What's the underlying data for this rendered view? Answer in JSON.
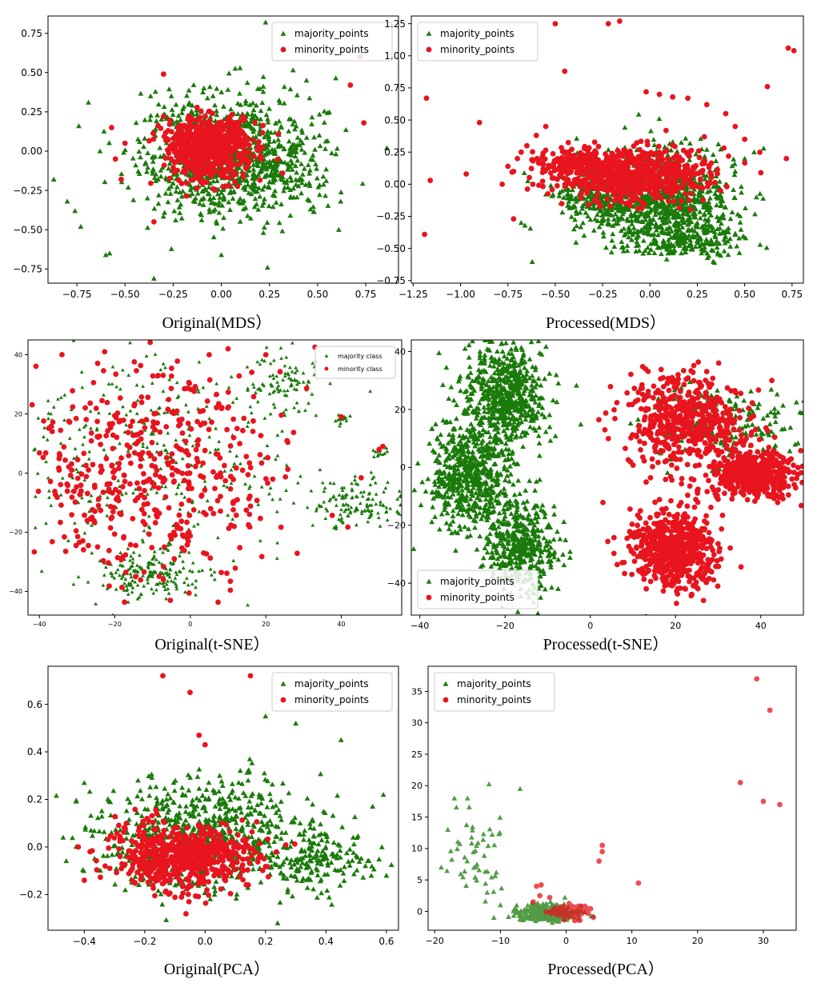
{
  "colors": {
    "majority": "#1a7a0a",
    "minority": "#e8141e",
    "frame": "#000000"
  },
  "chart_data": [
    {
      "type": "scatter",
      "caption": "Original(MDS）",
      "xlim": [
        -0.9,
        0.92
      ],
      "ylim": [
        -0.84,
        0.86
      ],
      "xticks": [
        -0.75,
        -0.5,
        -0.25,
        0.0,
        0.25,
        0.5,
        0.75
      ],
      "xtick_labels": [
        "−0.75",
        "−0.50",
        "−0.25",
        "0.00",
        "0.25",
        "0.50",
        "0.75"
      ],
      "yticks": [
        -0.75,
        -0.5,
        -0.25,
        0.0,
        0.25,
        0.5,
        0.75
      ],
      "ytick_labels": [
        "−0.75",
        "−0.50",
        "−0.25",
        "0.00",
        "0.25",
        "0.50",
        "0.75"
      ],
      "legend": [
        "majority_points",
        "minority_points"
      ],
      "legend_position": "top-right",
      "series": [
        {
          "name": "majority_points",
          "marker": "triangle",
          "clusters": [
            {
              "cx": 0.0,
              "cy": -0.02,
              "sx": 0.22,
              "sy": 0.2,
              "n": 800
            },
            {
              "cx": 0.3,
              "cy": -0.12,
              "sx": 0.18,
              "sy": 0.13,
              "n": 150
            }
          ],
          "points": [
            [
              0.23,
              0.82
            ],
            [
              -0.87,
              -0.18
            ],
            [
              -0.8,
              -0.32
            ],
            [
              -0.76,
              -0.38
            ],
            [
              -0.73,
              -0.48
            ],
            [
              -0.58,
              -0.65
            ],
            [
              -0.6,
              -0.66
            ],
            [
              -0.35,
              -0.81
            ],
            [
              0.62,
              0.62
            ],
            [
              0.86,
              0.02
            ],
            [
              0.62,
              -0.32
            ],
            [
              0.61,
              -0.5
            ],
            [
              -0.69,
              0.31
            ],
            [
              -0.74,
              0.16
            ],
            [
              -0.63,
              0.0
            ],
            [
              0.24,
              -0.74
            ],
            [
              0.0,
              -0.66
            ]
          ]
        },
        {
          "name": "minority_points",
          "marker": "circle",
          "clusters": [
            {
              "cx": -0.06,
              "cy": 0.02,
              "sx": 0.12,
              "sy": 0.1,
              "n": 600
            }
          ],
          "points": [
            [
              0.72,
              0.6
            ],
            [
              0.67,
              0.42
            ],
            [
              0.74,
              0.18
            ],
            [
              -0.35,
              -0.45
            ],
            [
              -0.57,
              0.15
            ],
            [
              -0.55,
              -0.05
            ],
            [
              -0.52,
              -0.18
            ],
            [
              -0.5,
              0.05
            ],
            [
              -0.3,
              0.49
            ]
          ]
        }
      ]
    },
    {
      "type": "scatter",
      "caption": "Processed(MDS）",
      "xlim": [
        -1.26,
        0.81
      ],
      "ylim": [
        -0.77,
        1.31
      ],
      "xticks": [
        -1.25,
        -1.0,
        -0.75,
        -0.5,
        -0.25,
        0.0,
        0.25,
        0.5,
        0.75
      ],
      "xtick_labels": [
        "−1.25",
        "−1.00",
        "−0.75",
        "−0.50",
        "−0.25",
        "0.00",
        "0.25",
        "0.50",
        "0.75"
      ],
      "yticks": [
        -0.75,
        -0.5,
        -0.25,
        0.0,
        0.25,
        0.5,
        0.75,
        1.0,
        1.25
      ],
      "ytick_labels": [
        "−0.75",
        "−0.50",
        "−0.25",
        "0.00",
        "0.25",
        "0.50",
        "0.75",
        "1.00",
        "1.25"
      ],
      "legend": [
        "majority_points",
        "minority_points"
      ],
      "legend_position": "top-left",
      "series": [
        {
          "name": "majority_points",
          "marker": "triangle",
          "clusters": [
            {
              "cx": 0.03,
              "cy": -0.12,
              "sx": 0.2,
              "sy": 0.18,
              "n": 900
            },
            {
              "cx": 0.2,
              "cy": -0.42,
              "sx": 0.15,
              "sy": 0.08,
              "n": 200
            },
            {
              "cx": -0.3,
              "cy": -0.08,
              "sx": 0.12,
              "sy": 0.08,
              "n": 150
            }
          ],
          "points": [
            [
              0.5,
              0.2
            ],
            [
              0.55,
              0.25
            ],
            [
              0.6,
              0.28
            ],
            [
              0.45,
              0.1
            ],
            [
              0.4,
              0.0
            ],
            [
              0.35,
              -0.1
            ],
            [
              0.3,
              -0.2
            ],
            [
              0.25,
              -0.3
            ],
            [
              -0.68,
              -0.3
            ],
            [
              -0.66,
              -0.32
            ]
          ]
        },
        {
          "name": "minority_points",
          "marker": "circle",
          "clusters": [
            {
              "cx": -0.1,
              "cy": 0.08,
              "sx": 0.2,
              "sy": 0.1,
              "n": 700
            },
            {
              "cx": -0.42,
              "cy": 0.17,
              "sx": 0.1,
              "sy": 0.05,
              "n": 120
            }
          ],
          "points": [
            [
              -0.5,
              1.25
            ],
            [
              -0.22,
              1.25
            ],
            [
              -0.16,
              1.27
            ],
            [
              0.73,
              1.06
            ],
            [
              0.76,
              1.04
            ],
            [
              -1.18,
              0.67
            ],
            [
              -0.45,
              0.88
            ],
            [
              -0.9,
              0.48
            ],
            [
              -0.97,
              0.08
            ],
            [
              -1.16,
              0.03
            ],
            [
              -1.19,
              -0.39
            ],
            [
              -0.72,
              -0.27
            ],
            [
              -0.78,
              0.0
            ],
            [
              0.62,
              0.76
            ],
            [
              0.72,
              0.2
            ],
            [
              -0.75,
              0.14
            ],
            [
              -0.7,
              0.2
            ],
            [
              -0.65,
              0.3
            ],
            [
              -0.6,
              0.38
            ],
            [
              -0.55,
              0.45
            ],
            [
              -0.02,
              0.72
            ],
            [
              0.05,
              0.7
            ],
            [
              0.12,
              0.68
            ],
            [
              0.2,
              0.67
            ],
            [
              0.3,
              0.62
            ],
            [
              0.4,
              0.55
            ],
            [
              0.45,
              0.45
            ],
            [
              0.5,
              0.35
            ],
            [
              -0.72,
              0.1
            ],
            [
              -0.68,
              0.25
            ]
          ]
        }
      ]
    },
    {
      "type": "scatter",
      "caption": "Original(t-SNE）",
      "xlim": [
        -43,
        56
      ],
      "ylim": [
        -48,
        45
      ],
      "xticks": [
        -40,
        -20,
        0,
        20,
        40
      ],
      "xtick_labels": [
        "−40",
        "−20",
        "0",
        "20",
        "40"
      ],
      "yticks": [
        -40,
        -20,
        0,
        20,
        40
      ],
      "ytick_labels": [
        "−40",
        "−20",
        "0",
        "20",
        "40"
      ],
      "legend": [
        "majority class",
        "minority class"
      ],
      "legend_position": "top-right",
      "series": [
        {
          "name": "majority class",
          "marker": "triangle",
          "small": true,
          "clusters": [
            {
              "cx": -10,
              "cy": -34,
              "sx": 7,
              "sy": 4,
              "n": 160
            },
            {
              "cx": 44,
              "cy": -10,
              "sx": 6,
              "sy": 4,
              "n": 140
            },
            {
              "cx": 25,
              "cy": 30,
              "sx": 5,
              "sy": 6,
              "n": 90
            },
            {
              "cx": -10,
              "cy": 5,
              "sx": 20,
              "sy": 20,
              "n": 350
            },
            {
              "cx": 40,
              "cy": 18,
              "sx": 1,
              "sy": 1,
              "n": 12
            },
            {
              "cx": 50,
              "cy": 7,
              "sx": 1,
              "sy": 1,
              "n": 10
            }
          ],
          "points": []
        },
        {
          "name": "minority class",
          "marker": "circle",
          "clusters": [
            {
              "cx": -10,
              "cy": 0,
              "sx": 18,
              "sy": 18,
              "n": 480
            }
          ],
          "points": [
            [
              10,
              42
            ],
            [
              5,
              40
            ],
            [
              20,
              40
            ],
            [
              40,
              19
            ],
            [
              50,
              8
            ],
            [
              51,
              9
            ]
          ]
        }
      ]
    },
    {
      "type": "scatter",
      "caption": "Processed(t-SNE）",
      "xlim": [
        -42,
        50
      ],
      "ylim": [
        -51,
        44
      ],
      "xticks": [
        -40,
        -20,
        0,
        20,
        40
      ],
      "xtick_labels": [
        "−40",
        "−20",
        "0",
        "20",
        "40"
      ],
      "yticks": [
        -40,
        -20,
        0,
        20,
        40
      ],
      "ytick_labels": [
        "−40",
        "−20",
        "0",
        "20",
        "40"
      ],
      "legend": [
        "majority_points",
        "minority_points"
      ],
      "legend_position": "bottom-left",
      "series": [
        {
          "name": "majority_points",
          "marker": "triangle",
          "clusters": [
            {
              "cx": -20,
              "cy": 25,
              "sx": 5,
              "sy": 9,
              "n": 600
            },
            {
              "cx": -28,
              "cy": -3,
              "sx": 5,
              "sy": 10,
              "n": 600
            },
            {
              "cx": -16,
              "cy": -28,
              "sx": 4,
              "sy": 8,
              "n": 400
            },
            {
              "cx": 30,
              "cy": 15,
              "sx": 9,
              "sy": 7,
              "n": 200
            }
          ],
          "points": []
        },
        {
          "name": "minority_points",
          "marker": "circle",
          "clusters": [
            {
              "cx": 22,
              "cy": 16,
              "sx": 7,
              "sy": 8,
              "n": 500
            },
            {
              "cx": 38,
              "cy": -2,
              "sx": 5,
              "sy": 4,
              "n": 500
            },
            {
              "cx": 20,
              "cy": -28,
              "sx": 5,
              "sy": 7,
              "n": 600
            }
          ],
          "points": []
        }
      ]
    },
    {
      "type": "scatter",
      "caption": "Original(PCA）",
      "xlim": [
        -0.52,
        0.64
      ],
      "ylim": [
        -0.35,
        0.76
      ],
      "xticks": [
        -0.4,
        -0.2,
        0.0,
        0.2,
        0.4,
        0.6
      ],
      "xtick_labels": [
        "−0.4",
        "−0.2",
        "0.0",
        "0.2",
        "0.4",
        "0.6"
      ],
      "yticks": [
        -0.2,
        0.0,
        0.2,
        0.4,
        0.6
      ],
      "ytick_labels": [
        "−0.2",
        "0.0",
        "0.2",
        "0.4",
        "0.6"
      ],
      "legend": [
        "majority_points",
        "minority_points"
      ],
      "legend_position": "top-right",
      "series": [
        {
          "name": "majority_points",
          "marker": "triangle",
          "clusters": [
            {
              "cx": 0.0,
              "cy": 0.05,
              "sx": 0.18,
              "sy": 0.12,
              "n": 700
            },
            {
              "cx": 0.4,
              "cy": -0.07,
              "sx": 0.08,
              "sy": 0.06,
              "n": 120
            }
          ],
          "points": [
            [
              0.2,
              0.55
            ],
            [
              0.3,
              0.52
            ],
            [
              0.45,
              0.45
            ],
            [
              0.59,
              0.22
            ],
            [
              -0.47,
              0.04
            ],
            [
              -0.4,
              0.27
            ],
            [
              0.55,
              -0.12
            ],
            [
              0.6,
              -0.12
            ],
            [
              0.24,
              -0.32
            ]
          ]
        },
        {
          "name": "minority_points",
          "marker": "circle",
          "clusters": [
            {
              "cx": -0.08,
              "cy": -0.04,
              "sx": 0.12,
              "sy": 0.07,
              "n": 600
            }
          ],
          "points": [
            [
              -0.14,
              0.72
            ],
            [
              0.15,
              0.72
            ],
            [
              -0.05,
              0.65
            ],
            [
              -0.4,
              -0.14
            ],
            [
              -0.42,
              0.0
            ],
            [
              -0.02,
              0.47
            ],
            [
              0.0,
              0.43
            ]
          ]
        }
      ]
    },
    {
      "type": "scatter",
      "caption": "Processed(PCA）",
      "xlim": [
        -21,
        35
      ],
      "ylim": [
        -3,
        39
      ],
      "xticks": [
        -20,
        -10,
        0,
        10,
        20,
        30
      ],
      "xtick_labels": [
        "−20",
        "−10",
        "0",
        "10",
        "20",
        "30"
      ],
      "yticks": [
        0,
        5,
        10,
        15,
        20,
        25,
        30,
        35
      ],
      "ytick_labels": [
        "0",
        "5",
        "10",
        "15",
        "20",
        "25",
        "30",
        "35"
      ],
      "legend": [
        "majority_points",
        "minority_points"
      ],
      "legend_position": "top-left",
      "series": [
        {
          "name": "majority_points",
          "marker": "triangle",
          "light": true,
          "clusters": [
            {
              "cx": -3,
              "cy": -0.2,
              "sx": 2.2,
              "sy": 0.6,
              "n": 400
            },
            {
              "cx": -14,
              "cy": 10,
              "sx": 2,
              "sy": 4,
              "n": 50
            }
          ],
          "points": [
            [
              -7,
              19.5
            ],
            [
              -17,
              18
            ],
            [
              -15,
              18
            ],
            [
              -18,
              13
            ],
            [
              -19,
              7
            ],
            [
              -12,
              3
            ],
            [
              -10,
              1
            ],
            [
              -11,
              -1
            ]
          ]
        },
        {
          "name": "minority_points",
          "marker": "circle",
          "light": true,
          "clusters": [
            {
              "cx": 0.8,
              "cy": 0.0,
              "sx": 1.3,
              "sy": 0.5,
              "n": 150
            }
          ],
          "points": [
            [
              29,
              37
            ],
            [
              31,
              32
            ],
            [
              26.5,
              20.5
            ],
            [
              30,
              17.5
            ],
            [
              32.5,
              17
            ],
            [
              11,
              4.5
            ],
            [
              5.5,
              10.5
            ],
            [
              5.5,
              9.5
            ],
            [
              5,
              8
            ],
            [
              -4.5,
              4
            ],
            [
              -3.8,
              4.2
            ],
            [
              -4,
              2.5
            ],
            [
              -2.5,
              2.2
            ],
            [
              -5,
              1.5
            ]
          ]
        }
      ]
    }
  ]
}
